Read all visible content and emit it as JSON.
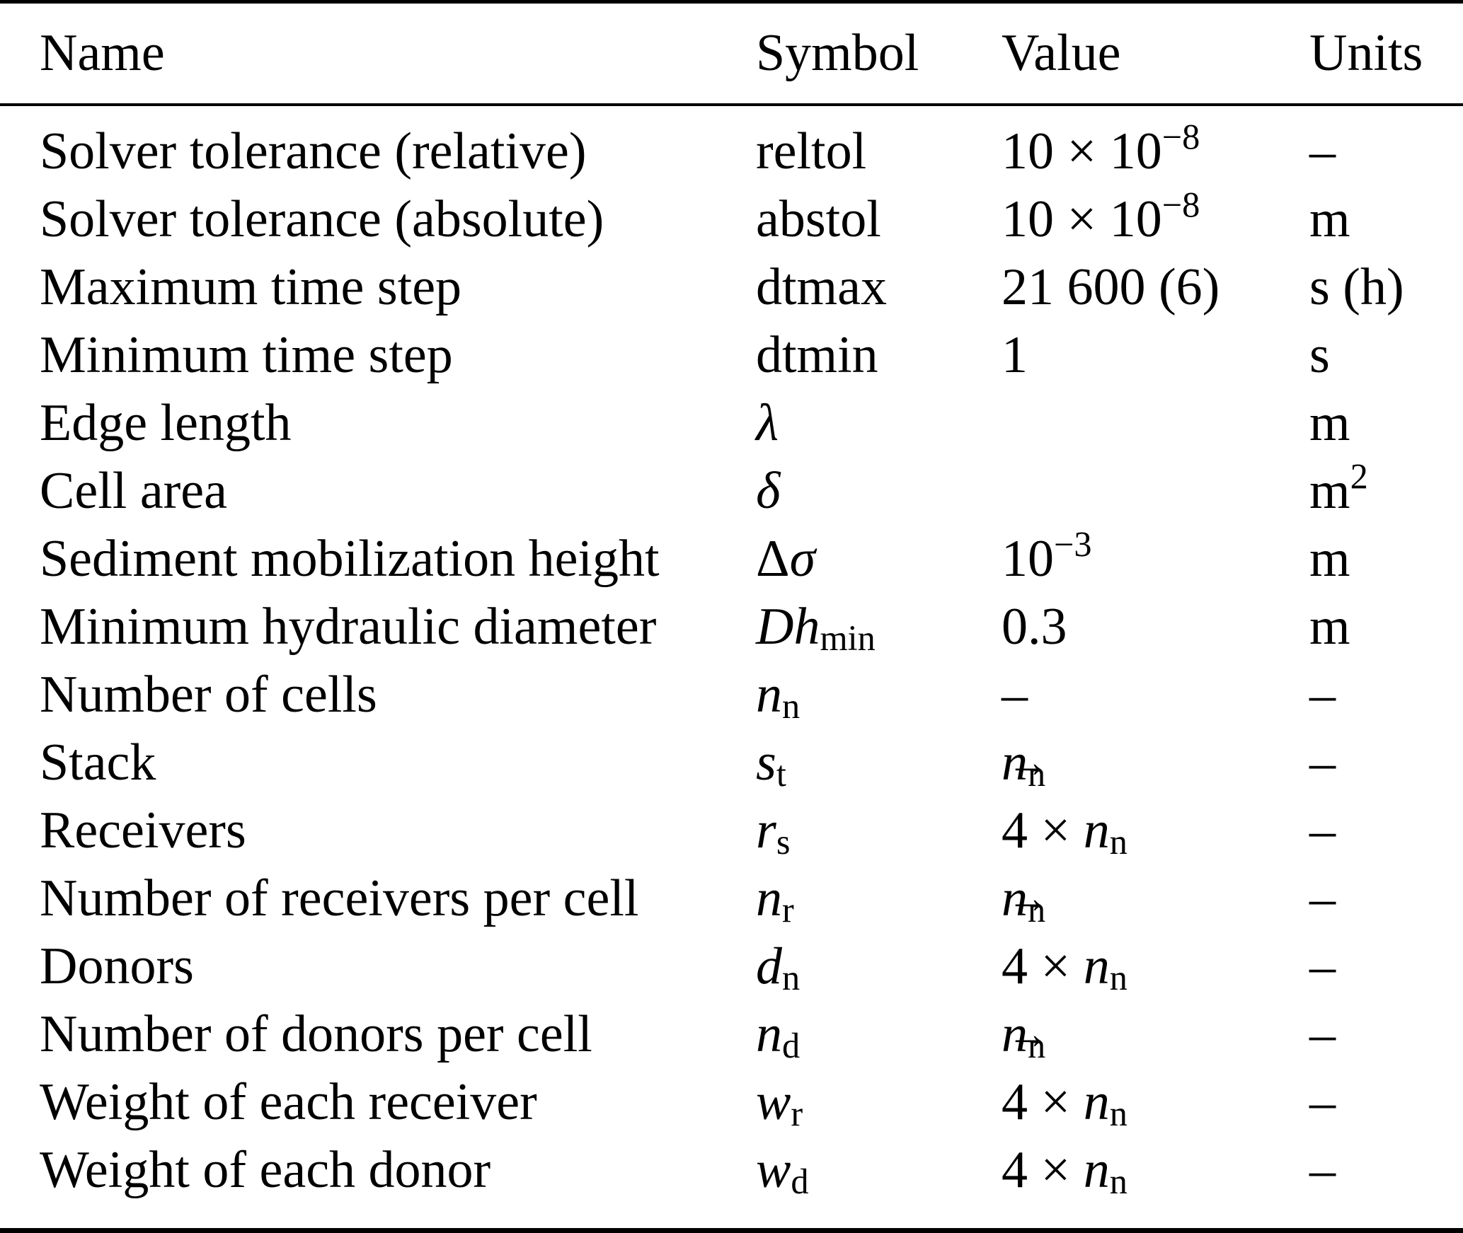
{
  "colors": {
    "text": "#000000",
    "background": "#ffffff",
    "rule": "#000000"
  },
  "table": {
    "columns": [
      "Name",
      "Symbol",
      "Value",
      "Units"
    ],
    "rows": [
      {
        "name": "Solver tolerance (relative)",
        "symbol": [
          {
            "t": "reltol"
          }
        ],
        "value": [
          {
            "t": "10 × 10"
          },
          {
            "t": "−8",
            "sup": true
          }
        ],
        "units": [
          {
            "t": "–"
          }
        ]
      },
      {
        "name": "Solver tolerance (absolute)",
        "symbol": [
          {
            "t": "abstol"
          }
        ],
        "value": [
          {
            "t": "10 × 10"
          },
          {
            "t": "−8",
            "sup": true
          }
        ],
        "units": [
          {
            "t": "m"
          }
        ]
      },
      {
        "name": "Maximum time step",
        "symbol": [
          {
            "t": "dtmax"
          }
        ],
        "value": [
          {
            "t": "21 600 (6)"
          }
        ],
        "units": [
          {
            "t": "s (h)"
          }
        ]
      },
      {
        "name": "Minimum time step",
        "symbol": [
          {
            "t": "dtmin"
          }
        ],
        "value": [
          {
            "t": "1"
          }
        ],
        "units": [
          {
            "t": "s"
          }
        ]
      },
      {
        "name": "Edge length",
        "symbol": [
          {
            "t": "λ",
            "it": true
          }
        ],
        "value": [],
        "units": [
          {
            "t": "m"
          }
        ]
      },
      {
        "name": "Cell area",
        "symbol": [
          {
            "t": "δ",
            "it": true
          }
        ],
        "value": [],
        "units": [
          {
            "t": "m"
          },
          {
            "t": "2",
            "sup": true
          }
        ]
      },
      {
        "name": "Sediment mobilization height",
        "symbol": [
          {
            "t": "Δ"
          },
          {
            "t": "σ",
            "it": true
          }
        ],
        "value": [
          {
            "t": "10"
          },
          {
            "t": "−3",
            "sup": true
          }
        ],
        "units": [
          {
            "t": "m"
          }
        ]
      },
      {
        "name": "Minimum hydraulic diameter",
        "symbol": [
          {
            "t": "Dh",
            "it": true
          },
          {
            "t": "min",
            "sub": true
          }
        ],
        "value": [
          {
            "t": "0.3"
          }
        ],
        "units": [
          {
            "t": "m"
          }
        ]
      },
      {
        "name": "Number of cells",
        "symbol": [
          {
            "t": "n",
            "it": true
          },
          {
            "t": "n",
            "sub": true
          }
        ],
        "value": [
          {
            "t": "–"
          }
        ],
        "units": [
          {
            "t": "–"
          }
        ]
      },
      {
        "name": "Stack",
        "symbol": [
          {
            "t": "s",
            "it": true
          },
          {
            "t": "t",
            "sub": true
          }
        ],
        "value": [
          {
            "t": "n",
            "it": true,
            "vec": true
          },
          {
            "t": "n",
            "sub": true
          }
        ],
        "units": [
          {
            "t": "–"
          }
        ]
      },
      {
        "name": "Receivers",
        "symbol": [
          {
            "t": "r",
            "it": true
          },
          {
            "t": "s",
            "sub": true
          }
        ],
        "value": [
          {
            "t": "4 × "
          },
          {
            "t": "n",
            "it": true
          },
          {
            "t": "n",
            "sub": true
          }
        ],
        "units": [
          {
            "t": "–"
          }
        ]
      },
      {
        "name": "Number of receivers per cell",
        "symbol": [
          {
            "t": "n",
            "it": true
          },
          {
            "t": "r",
            "sub": true
          }
        ],
        "value": [
          {
            "t": "n",
            "it": true,
            "vec": true
          },
          {
            "t": "n",
            "sub": true
          }
        ],
        "units": [
          {
            "t": "–"
          }
        ]
      },
      {
        "name": "Donors",
        "symbol": [
          {
            "t": "d",
            "it": true
          },
          {
            "t": "n",
            "sub": true
          }
        ],
        "value": [
          {
            "t": "4 × "
          },
          {
            "t": "n",
            "it": true
          },
          {
            "t": "n",
            "sub": true
          }
        ],
        "units": [
          {
            "t": "–"
          }
        ]
      },
      {
        "name": "Number of donors per cell",
        "symbol": [
          {
            "t": "n",
            "it": true
          },
          {
            "t": "d",
            "sub": true
          }
        ],
        "value": [
          {
            "t": "n",
            "it": true,
            "vec": true
          },
          {
            "t": "n",
            "sub": true
          }
        ],
        "units": [
          {
            "t": "–"
          }
        ]
      },
      {
        "name": "Weight of each receiver",
        "symbol": [
          {
            "t": "w",
            "it": true
          },
          {
            "t": "r",
            "sub": true
          }
        ],
        "value": [
          {
            "t": "4 × "
          },
          {
            "t": "n",
            "it": true
          },
          {
            "t": "n",
            "sub": true
          }
        ],
        "units": [
          {
            "t": "–"
          }
        ]
      },
      {
        "name": "Weight of each donor",
        "symbol": [
          {
            "t": "w",
            "it": true
          },
          {
            "t": "d",
            "sub": true
          }
        ],
        "value": [
          {
            "t": "4 × "
          },
          {
            "t": "n",
            "it": true
          },
          {
            "t": "n",
            "sub": true
          }
        ],
        "units": [
          {
            "t": "–"
          }
        ]
      }
    ]
  }
}
